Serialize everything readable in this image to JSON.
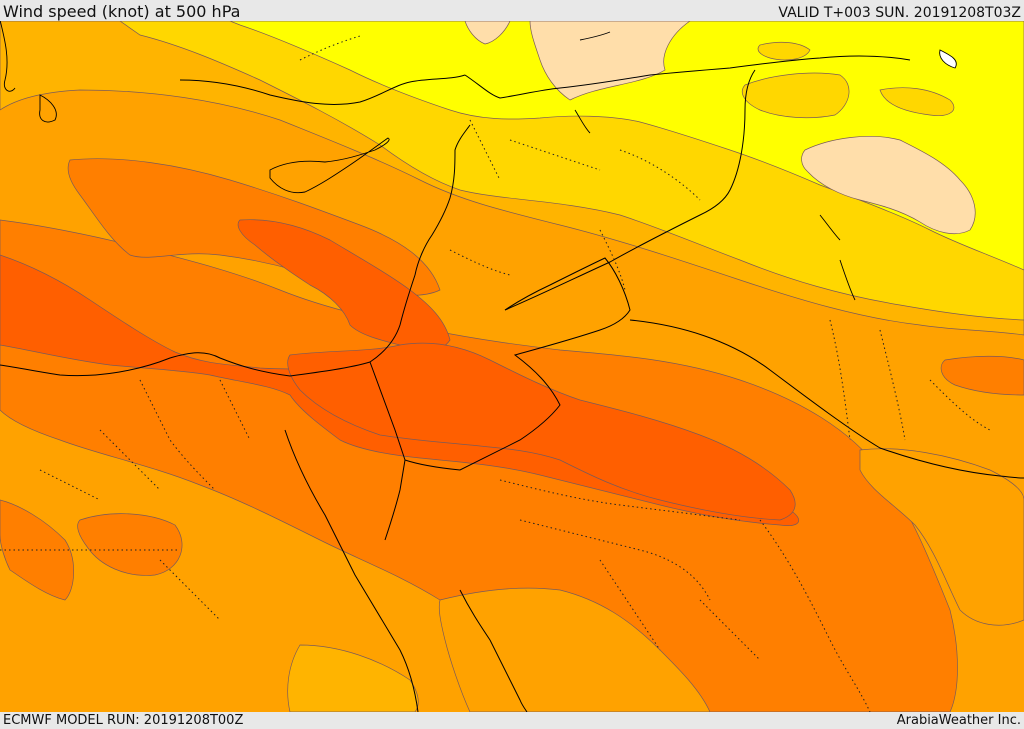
{
  "header": {
    "title": "Wind speed (knot) at 500 hPa",
    "valid_time": "VALID T+003 SUN. 20191208T03Z"
  },
  "footer": {
    "model_run": "ECMWF MODEL RUN: 20191208T00Z",
    "credit": "ArabiaWeather Inc."
  },
  "map": {
    "variable": "wind speed",
    "units": "knot",
    "level_hpa": 500,
    "shading_colors": [
      "#ffdeaa",
      "#ffff00",
      "#ffd700",
      "#ffb400",
      "#ffa200",
      "#ff7f00",
      "#ff5f00"
    ],
    "contour_color": "#7a5a5a",
    "border_color": "#000000",
    "admin_border_style": "dotted"
  }
}
